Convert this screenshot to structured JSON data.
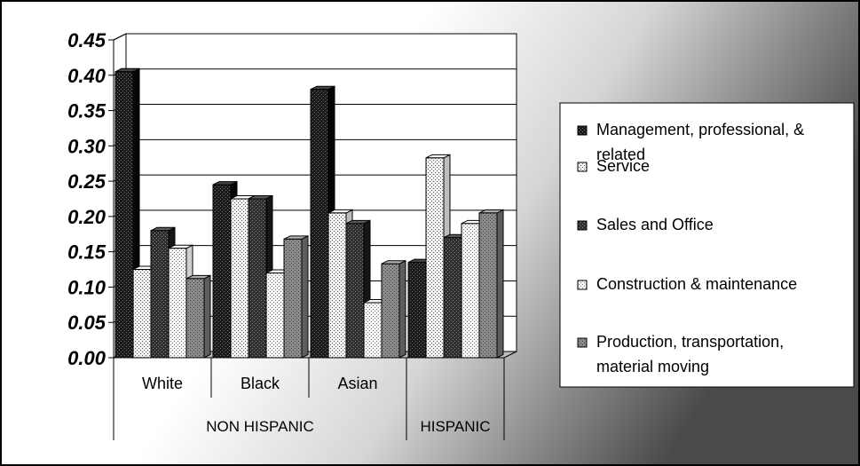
{
  "chart_data": {
    "type": "bar",
    "title": "",
    "xlabel": "",
    "ylabel": "",
    "ylim": [
      0,
      0.45
    ],
    "y_ticks": [
      "0.00",
      "0.05",
      "0.10",
      "0.15",
      "0.20",
      "0.25",
      "0.30",
      "0.35",
      "0.40",
      "0.45"
    ],
    "grid": true,
    "legend_position": "right",
    "categories": [
      "White",
      "Black",
      "Asian",
      ""
    ],
    "groups": [
      {
        "label": "NON HISPANIC",
        "span": [
          0,
          2
        ]
      },
      {
        "label": "HISPANIC",
        "span": [
          3,
          3
        ]
      }
    ],
    "series": [
      {
        "name": "Management, professional, & related",
        "values": [
          0.405,
          0.245,
          0.38,
          0.135
        ]
      },
      {
        "name": "Service",
        "values": [
          0.125,
          0.225,
          0.205,
          0.283
        ]
      },
      {
        "name": "Sales and Office",
        "values": [
          0.18,
          0.225,
          0.19,
          0.17
        ]
      },
      {
        "name": "Construction & maintenance",
        "values": [
          0.155,
          0.12,
          0.078,
          0.19
        ]
      },
      {
        "name": "Production, transportation, material moving",
        "values": [
          0.112,
          0.168,
          0.133,
          0.205
        ]
      }
    ],
    "series_style": [
      {
        "fill": "#1a1a1a",
        "dots": "#777777",
        "side": "#050505",
        "top": "#444444"
      },
      {
        "fill": "#f2f2f2",
        "dots": "#555555",
        "side": "#bdbdbd",
        "top": "#ffffff"
      },
      {
        "fill": "#2e2e2e",
        "dots": "#8a8a8a",
        "side": "#161616",
        "top": "#5a5a5a"
      },
      {
        "fill": "#f5f5f5",
        "dots": "#777777",
        "side": "#cfcfcf",
        "top": "#ffffff"
      },
      {
        "fill": "#8c8c8c",
        "dots": "#3a3a3a",
        "side": "#5e5e5e",
        "top": "#b0b0b0"
      }
    ]
  }
}
